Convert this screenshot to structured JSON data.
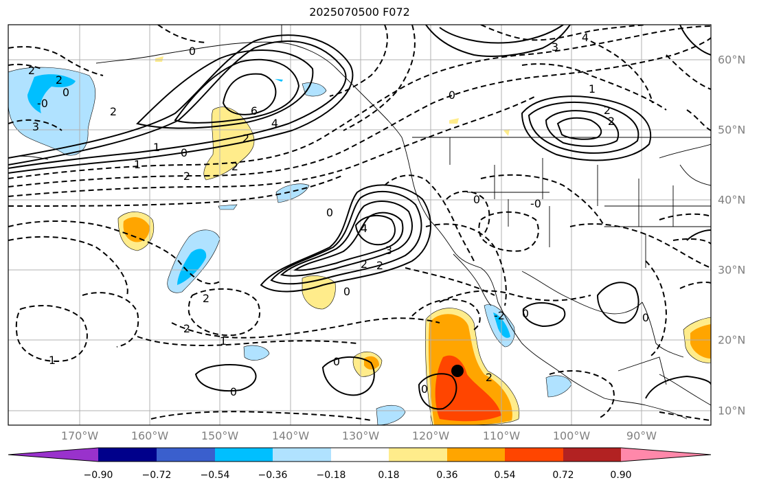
{
  "title": "2025070500 F072",
  "axes": {
    "lon_labels": [
      "170°W",
      "160°W",
      "150°W",
      "140°W",
      "130°W",
      "120°W",
      "110°W",
      "100°W",
      "90°W"
    ],
    "lat_labels": [
      "60°N",
      "50°N",
      "40°N",
      "30°N",
      "20°N",
      "10°N"
    ]
  },
  "colorbar": {
    "ticks": [
      "−0.90",
      "−0.72",
      "−0.54",
      "−0.36",
      "−0.18",
      "0.18",
      "0.36",
      "0.54",
      "0.72",
      "0.90"
    ],
    "colors": [
      "#9932cc",
      "#00008b",
      "#3a5fcd",
      "#00bfff",
      "#b0e2ff",
      "#ffffff",
      "#ffec8b",
      "#ffa500",
      "#ff4500",
      "#b22222",
      "#ff88aa"
    ]
  },
  "contour_labels": [
    "2",
    "0",
    "2",
    "-0",
    "3",
    "2",
    "1",
    "0",
    "1",
    "2",
    "6",
    "4",
    "2",
    "2",
    "0",
    "0",
    "4",
    "3",
    "2",
    "2",
    "0",
    "-0",
    "0",
    "0",
    "1",
    "2",
    "2",
    "1",
    "0",
    "2",
    "0",
    "-2",
    "0",
    "2",
    "2",
    "0",
    "0",
    "3",
    "1",
    "4"
  ],
  "marker": {
    "name": "storm-center"
  }
}
